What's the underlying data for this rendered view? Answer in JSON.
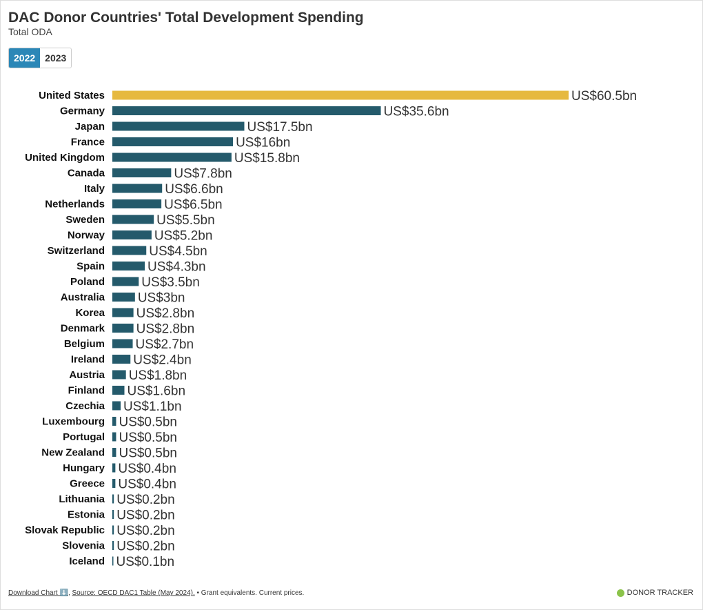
{
  "header": {
    "title": "DAC Donor Countries' Total Development Spending",
    "subtitle": "Total ODA"
  },
  "tabs": [
    {
      "label": "2022",
      "active": true
    },
    {
      "label": "2023",
      "active": false
    }
  ],
  "footer": {
    "download": "Download Chart ⬇️",
    "source": "Source: OECD DAC1 Table (May 2024).",
    "note": " • Grant equivalents. Current prices.",
    "brand": "DONOR TRACKER"
  },
  "colors": {
    "highlight": "#e6b93f",
    "bar": "#245a6b",
    "tab_active": "#2b87b7",
    "brand_dot": "#8bc34a"
  },
  "chart_data": {
    "type": "bar",
    "orientation": "horizontal",
    "unit_prefix": "US$",
    "unit_suffix": "bn",
    "categories": [
      "United States",
      "Germany",
      "Japan",
      "France",
      "United Kingdom",
      "Canada",
      "Italy",
      "Netherlands",
      "Sweden",
      "Norway",
      "Switzerland",
      "Spain",
      "Poland",
      "Australia",
      "Korea",
      "Denmark",
      "Belgium",
      "Ireland",
      "Austria",
      "Finland",
      "Czechia",
      "Luxembourg",
      "Portugal",
      "New Zealand",
      "Hungary",
      "Greece",
      "Lithuania",
      "Estonia",
      "Slovak Republic",
      "Slovenia",
      "Iceland"
    ],
    "values": [
      60.5,
      35.6,
      17.5,
      16,
      15.8,
      7.8,
      6.6,
      6.5,
      5.5,
      5.2,
      4.5,
      4.3,
      3.5,
      3,
      2.8,
      2.8,
      2.7,
      2.4,
      1.8,
      1.6,
      1.1,
      0.5,
      0.5,
      0.5,
      0.4,
      0.4,
      0.2,
      0.2,
      0.2,
      0.2,
      0.1
    ],
    "labels": [
      "US$60.5bn",
      "US$35.6bn",
      "US$17.5bn",
      "US$16bn",
      "US$15.8bn",
      "US$7.8bn",
      "US$6.6bn",
      "US$6.5bn",
      "US$5.5bn",
      "US$5.2bn",
      "US$4.5bn",
      "US$4.3bn",
      "US$3.5bn",
      "US$3bn",
      "US$2.8bn",
      "US$2.8bn",
      "US$2.7bn",
      "US$2.4bn",
      "US$1.8bn",
      "US$1.6bn",
      "US$1.1bn",
      "US$0.5bn",
      "US$0.5bn",
      "US$0.5bn",
      "US$0.4bn",
      "US$0.4bn",
      "US$0.2bn",
      "US$0.2bn",
      "US$0.2bn",
      "US$0.2bn",
      "US$0.1bn"
    ],
    "highlight": "United States",
    "grid": false,
    "legend": "none"
  }
}
